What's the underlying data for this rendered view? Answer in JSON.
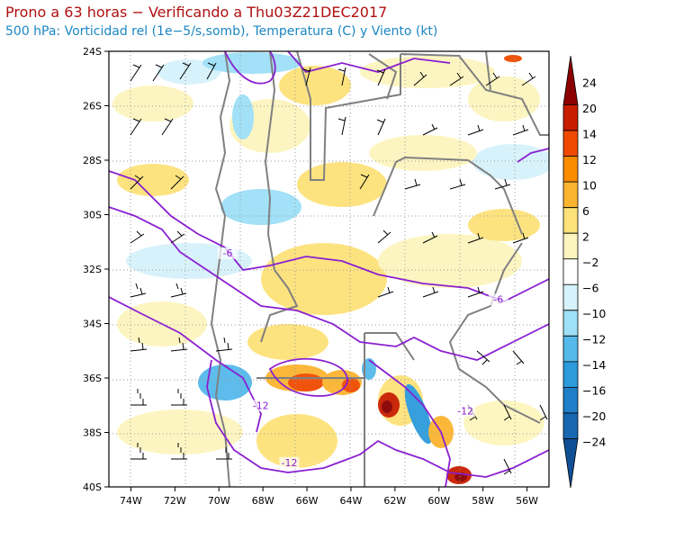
{
  "header": {
    "title": "Prono a 63 horas − Verificando a Thu03Z21DEC2017",
    "subtitle": "500 hPa: Vorticidad rel (1e−5/s,somb), Temperatura (C) y Viento (kt)"
  },
  "map": {
    "lon_range": [
      -75,
      -55
    ],
    "lat_range": [
      -40,
      -24
    ],
    "lat_labels": [
      "24S",
      "26S",
      "28S",
      "30S",
      "32S",
      "34S",
      "36S",
      "38S",
      "40S"
    ],
    "lat_values": [
      -24,
      -26,
      -28,
      -30,
      -32,
      -34,
      -36,
      -38,
      -40
    ],
    "lon_labels": [
      "74W",
      "72W",
      "70W",
      "68W",
      "66W",
      "64W",
      "62W",
      "60W",
      "58W",
      "56W"
    ],
    "lon_values": [
      -74,
      -72,
      -70,
      -68,
      -66,
      -64,
      -62,
      -60,
      -58,
      -56
    ],
    "temperature_contour_labels": [
      {
        "text": "-6",
        "lon": -69.6,
        "lat": -31.5
      },
      {
        "text": "-6",
        "lon": -57.3,
        "lat": -33.2
      },
      {
        "text": "-12",
        "lon": -68.1,
        "lat": -37.1
      },
      {
        "text": "-12",
        "lon": -58.8,
        "lat": -37.3
      },
      {
        "text": "-12",
        "lon": -66.8,
        "lat": -39.2
      }
    ],
    "colors": {
      "temperature_contour": "#8a1fd0",
      "boundaries": "#808080",
      "wind_barbs": "#000000"
    }
  },
  "colorbar": {
    "labels": [
      "24",
      "20",
      "14",
      "12",
      "10",
      "6",
      "2",
      "−2",
      "−6",
      "−10",
      "−12",
      "−14",
      "−16",
      "−20",
      "−24"
    ],
    "colors": [
      "#8b0000",
      "#c81e00",
      "#f04a00",
      "#fa8c00",
      "#fbb430",
      "#fde27a",
      "#fdf5be",
      "#ffffff",
      "#d6f2fb",
      "#9ee0f7",
      "#55b9ea",
      "#2c9adb",
      "#1f7fc9",
      "#1768b0",
      "#0f4f96"
    ]
  }
}
